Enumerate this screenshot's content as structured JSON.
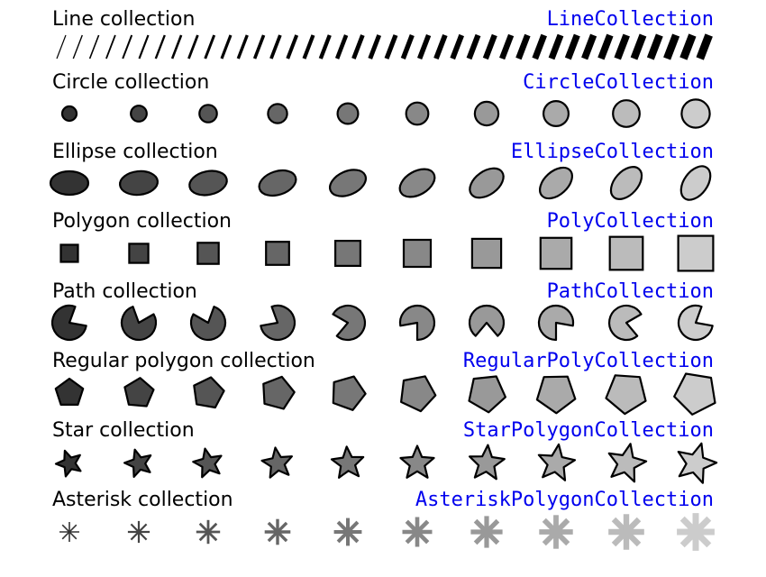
{
  "sections": [
    {
      "label": "Line collection",
      "class_name": "LineCollection",
      "shape": "line"
    },
    {
      "label": "Circle collection",
      "class_name": "CircleCollection",
      "shape": "circle"
    },
    {
      "label": "Ellipse collection",
      "class_name": "EllipseCollection",
      "shape": "ellipse"
    },
    {
      "label": "Polygon collection",
      "class_name": "PolyCollection",
      "shape": "square"
    },
    {
      "label": "Path collection",
      "class_name": "PathCollection",
      "shape": "pie"
    },
    {
      "label": "Regular polygon collection",
      "class_name": "RegularPolyCollection",
      "shape": "pentagon"
    },
    {
      "label": "Star collection",
      "class_name": "StarPolygonCollection",
      "shape": "star"
    },
    {
      "label": "Asterisk collection",
      "class_name": "AsteriskPolygonCollection",
      "shape": "asterisk"
    }
  ],
  "colors": {
    "label": "#000000",
    "class_name": "#0000ee",
    "outline": "#000000",
    "fill_start": "#333333",
    "fill_end": "#cccccc"
  }
}
